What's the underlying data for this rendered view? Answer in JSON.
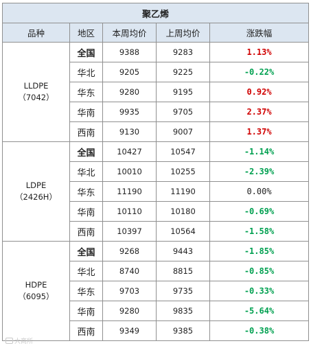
{
  "title": "聚乙烯",
  "headers": [
    "品种",
    "地区",
    "本周均价",
    "上周均价",
    "涨跌幅"
  ],
  "groups": [
    {
      "product_name": "LLDPE",
      "product_code": "（7042）",
      "rows": [
        {
          "region": "全国",
          "this_week": "9388",
          "last_week": "9283",
          "change": "1.13%",
          "dir": "up",
          "bold_region": true
        },
        {
          "region": "华北",
          "this_week": "9205",
          "last_week": "9225",
          "change": "-0.22%",
          "dir": "down",
          "bold_region": false
        },
        {
          "region": "华东",
          "this_week": "9280",
          "last_week": "9195",
          "change": "0.92%",
          "dir": "up",
          "bold_region": false
        },
        {
          "region": "华南",
          "this_week": "9935",
          "last_week": "9705",
          "change": "2.37%",
          "dir": "up",
          "bold_region": false
        },
        {
          "region": "西南",
          "this_week": "9130",
          "last_week": "9007",
          "change": "1.37%",
          "dir": "up",
          "bold_region": false
        }
      ]
    },
    {
      "product_name": "LDPE",
      "product_code": "（2426H）",
      "rows": [
        {
          "region": "全国",
          "this_week": "10427",
          "last_week": "10547",
          "change": "-1.14%",
          "dir": "down",
          "bold_region": true
        },
        {
          "region": "华北",
          "this_week": "10010",
          "last_week": "10255",
          "change": "-2.39%",
          "dir": "down",
          "bold_region": false
        },
        {
          "region": "华东",
          "this_week": "11190",
          "last_week": "11190",
          "change": "0.00%",
          "dir": "flat",
          "bold_region": false
        },
        {
          "region": "华南",
          "this_week": "10110",
          "last_week": "10180",
          "change": "-0.69%",
          "dir": "down",
          "bold_region": false
        },
        {
          "region": "西南",
          "this_week": "10397",
          "last_week": "10564",
          "change": "-1.58%",
          "dir": "down",
          "bold_region": false
        }
      ]
    },
    {
      "product_name": "HDPE",
      "product_code": "（6095）",
      "rows": [
        {
          "region": "全国",
          "this_week": "9268",
          "last_week": "9443",
          "change": "-1.85%",
          "dir": "down",
          "bold_region": true
        },
        {
          "region": "华北",
          "this_week": "8740",
          "last_week": "8815",
          "change": "-0.85%",
          "dir": "down",
          "bold_region": false
        },
        {
          "region": "华东",
          "this_week": "9703",
          "last_week": "9735",
          "change": "-0.33%",
          "dir": "down",
          "bold_region": false
        },
        {
          "region": "华南",
          "this_week": "9280",
          "last_week": "9835",
          "change": "-5.64%",
          "dir": "down",
          "bold_region": false
        },
        {
          "region": "西南",
          "this_week": "9349",
          "last_week": "9385",
          "change": "-0.38%",
          "dir": "down",
          "bold_region": false
        }
      ]
    }
  ],
  "colors": {
    "header_bg": "#dce6f1",
    "up": "#d00000",
    "down": "#00a050",
    "border": "#8f8f8f"
  },
  "watermark": {
    "icon": "weibo-logo-icon",
    "text": "大商所"
  }
}
